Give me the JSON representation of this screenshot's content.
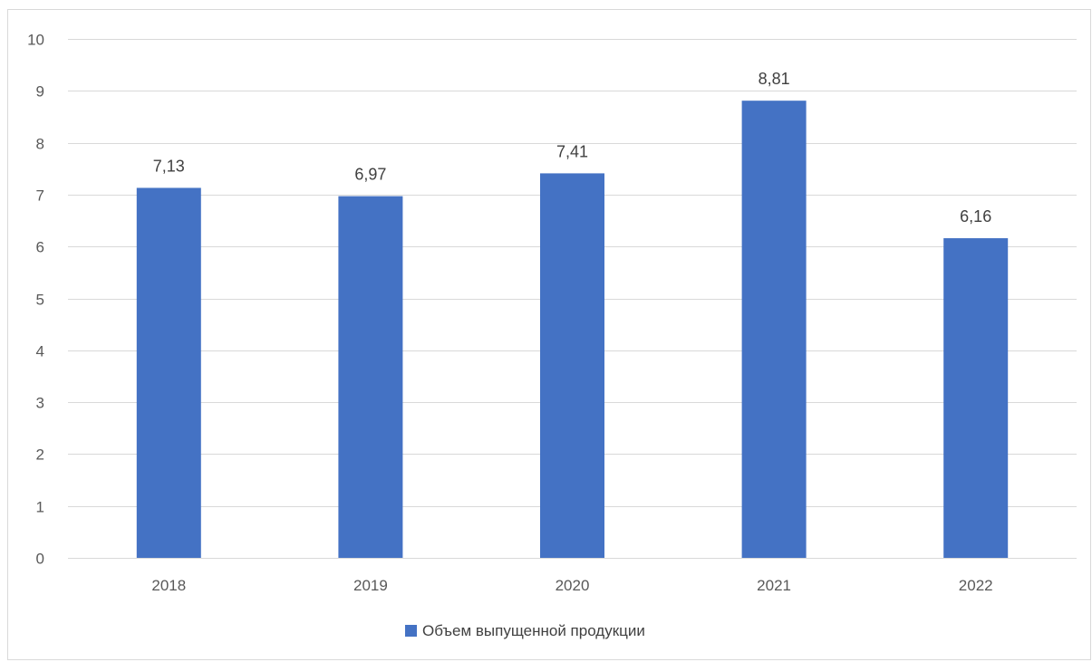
{
  "chart_data": {
    "type": "bar",
    "categories": [
      "2018",
      "2019",
      "2020",
      "2021",
      "2022"
    ],
    "series": [
      {
        "name": "Объем выпущенной продукции",
        "values": [
          7.13,
          6.97,
          7.41,
          8.81,
          6.16
        ],
        "value_labels": [
          "7,13",
          "6,97",
          "7,41",
          "8,81",
          "6,16"
        ],
        "color": "#4472c4"
      }
    ],
    "ylim": [
      0,
      10
    ],
    "yticks": [
      0,
      1,
      2,
      3,
      4,
      5,
      6,
      7,
      8,
      9,
      10
    ],
    "ytick_labels": [
      "0",
      "1",
      "2",
      "3",
      "4",
      "5",
      "6",
      "7",
      "8",
      "9",
      "10"
    ],
    "grid": true,
    "gridline_color": "#d9d9d9",
    "legend_position": "bottom",
    "title": "",
    "xlabel": "",
    "ylabel": ""
  }
}
